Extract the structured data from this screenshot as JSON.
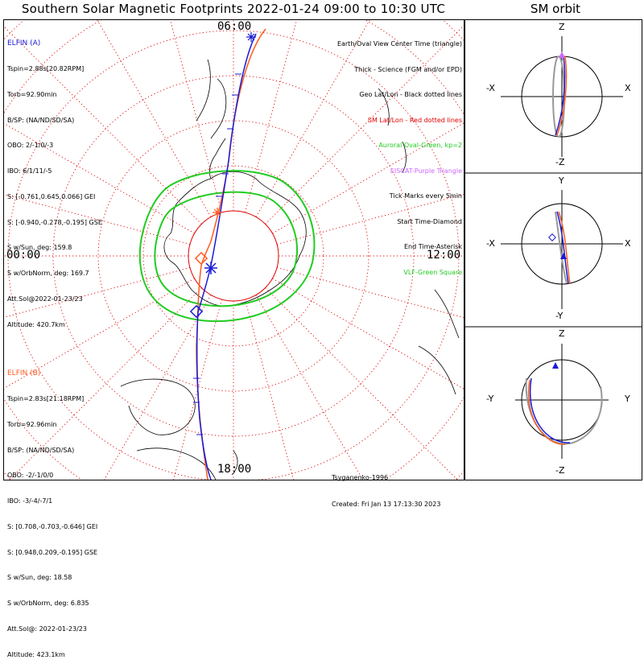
{
  "title": "Southern Solar Magnetic Footprints 2022-01-24 09:00 to 10:30 UTC",
  "orbit_title": "SM orbit",
  "clock_labels": {
    "top": "06:00",
    "left": "00:00",
    "right": "12:00",
    "bottom": "18:00"
  },
  "sat_a": {
    "name": "ELFIN (A)",
    "color": "#1a1ad6",
    "lines": [
      "Tspin=2.88s[20.82RPM]",
      "Torb=92.90min",
      "B/SP: (NA/ND/SD/SA)",
      "OBO: 2/-1/0/-3",
      "IBO: 6/1/11/-5",
      "S: [-0.761,0.645,0.066] GEI",
      "S: [-0.940,-0.278,-0.195] GSE",
      "S w/Sun, deg: 159.8",
      "S w/OrbNorm, deg: 169.7",
      "Att.Sol@2022-01-23/23",
      "Altitude: 420.7km"
    ]
  },
  "sat_b": {
    "name": "ELFIN (B)",
    "color": "#ff5a1f",
    "lines": [
      "Tspin=2.83s[21.18RPM]",
      "Torb=92.96min",
      "B/SP: (NA/ND/SD/SA)",
      "OBO: -2/-1/0/0",
      "IBO: -3/-4/-7/1",
      "S: [0.708,-0.703,-0.646] GEI",
      "S: [0.948,0.209,-0.195] GSE",
      "S w/Sun, deg: 18.58",
      "S w/OrbNorm, deg: 6.835",
      "Att.Sol@: 2022-01-23/23",
      "Altitude: 423.1km"
    ]
  },
  "legend": [
    {
      "text": "Earth/Oval View Center Time (triangle)",
      "color": "#000000"
    },
    {
      "text": "Thick - Science (FGM and/or EPD)",
      "color": "#000000"
    },
    {
      "text": "Geo Lat/Lon - Black dotted lines",
      "color": "#000000"
    },
    {
      "text": "SM Lat/Lon - Red dotted lines",
      "color": "#e00000"
    },
    {
      "text": "Auroral Oval-Green, kp=2",
      "color": "#22cc22"
    },
    {
      "text": "EISCAT-Purple Triangle",
      "color": "#cc66ff"
    },
    {
      "text": "Tick Marks every 5min",
      "color": "#000000"
    },
    {
      "text": "Start Time-Diamond",
      "color": "#000000"
    },
    {
      "text": "End Time-Asterisk",
      "color": "#000000"
    },
    {
      "text": "VLF-Green Square",
      "color": "#22cc22"
    }
  ],
  "credit": {
    "author": "Tsyganenko-1996",
    "created": "Created: Fri Jan 13 17:13:30 2023"
  },
  "orbit_panels": [
    {
      "top": "Z",
      "bottom": "-Z",
      "left": "-X",
      "right": "X"
    },
    {
      "top": "Y",
      "bottom": "-Y",
      "left": "-X",
      "right": "X"
    },
    {
      "top": "Z",
      "bottom": "-Z",
      "left": "-Y",
      "right": "Y"
    }
  ],
  "colors": {
    "grid_red": "#e00000",
    "oval": "#22cc22",
    "track_a": "#1a1ad6",
    "track_b": "#ff5a1f"
  }
}
